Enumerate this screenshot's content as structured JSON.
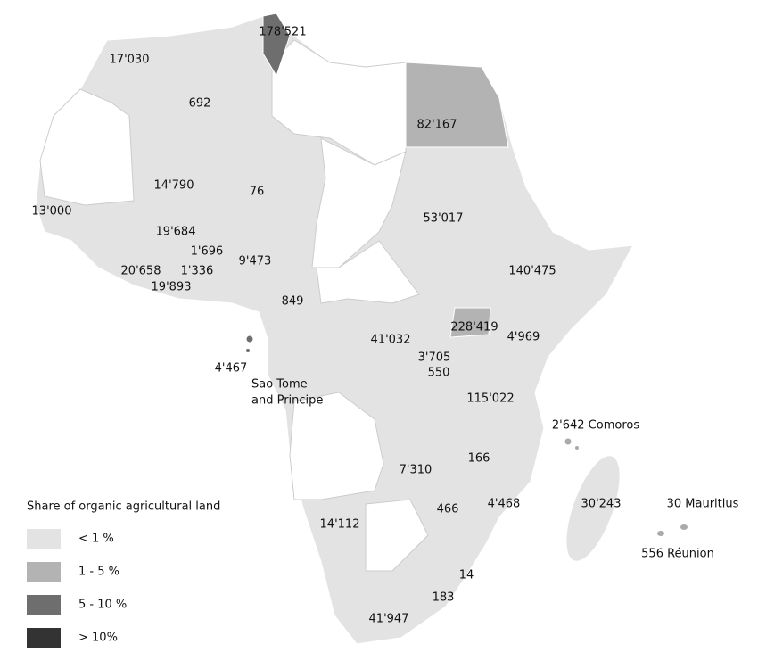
{
  "map": {
    "labels": [
      "178'521",
      "17'030",
      "692",
      "82'167",
      "14'790",
      "76",
      "13'000",
      "53'017",
      "19'684",
      "1'696",
      "9'473",
      "140'475",
      "20'658",
      "1'336",
      "19'893",
      "849",
      "228'419",
      "41'032",
      "4'969",
      "4'467",
      "Sao Tome",
      "and Principe",
      "3'705",
      "550",
      "115'022",
      "2'642 Comoros",
      "7'310",
      "166",
      "30'243",
      "30 Mauritius",
      "466",
      "4'468",
      "14'112",
      "556 Réunion",
      "14",
      "183",
      "41'947"
    ]
  },
  "legend": {
    "title": "Share of organic agricultural land",
    "items": [
      {
        "label": "< 1 %",
        "color": "#e3e3e3"
      },
      {
        "label": "1 - 5 %",
        "color": "#b3b3b3"
      },
      {
        "label": "5 - 10 %",
        "color": "#6e6e6e"
      },
      {
        "label": "> 10%",
        "color": "#333333"
      }
    ]
  }
}
